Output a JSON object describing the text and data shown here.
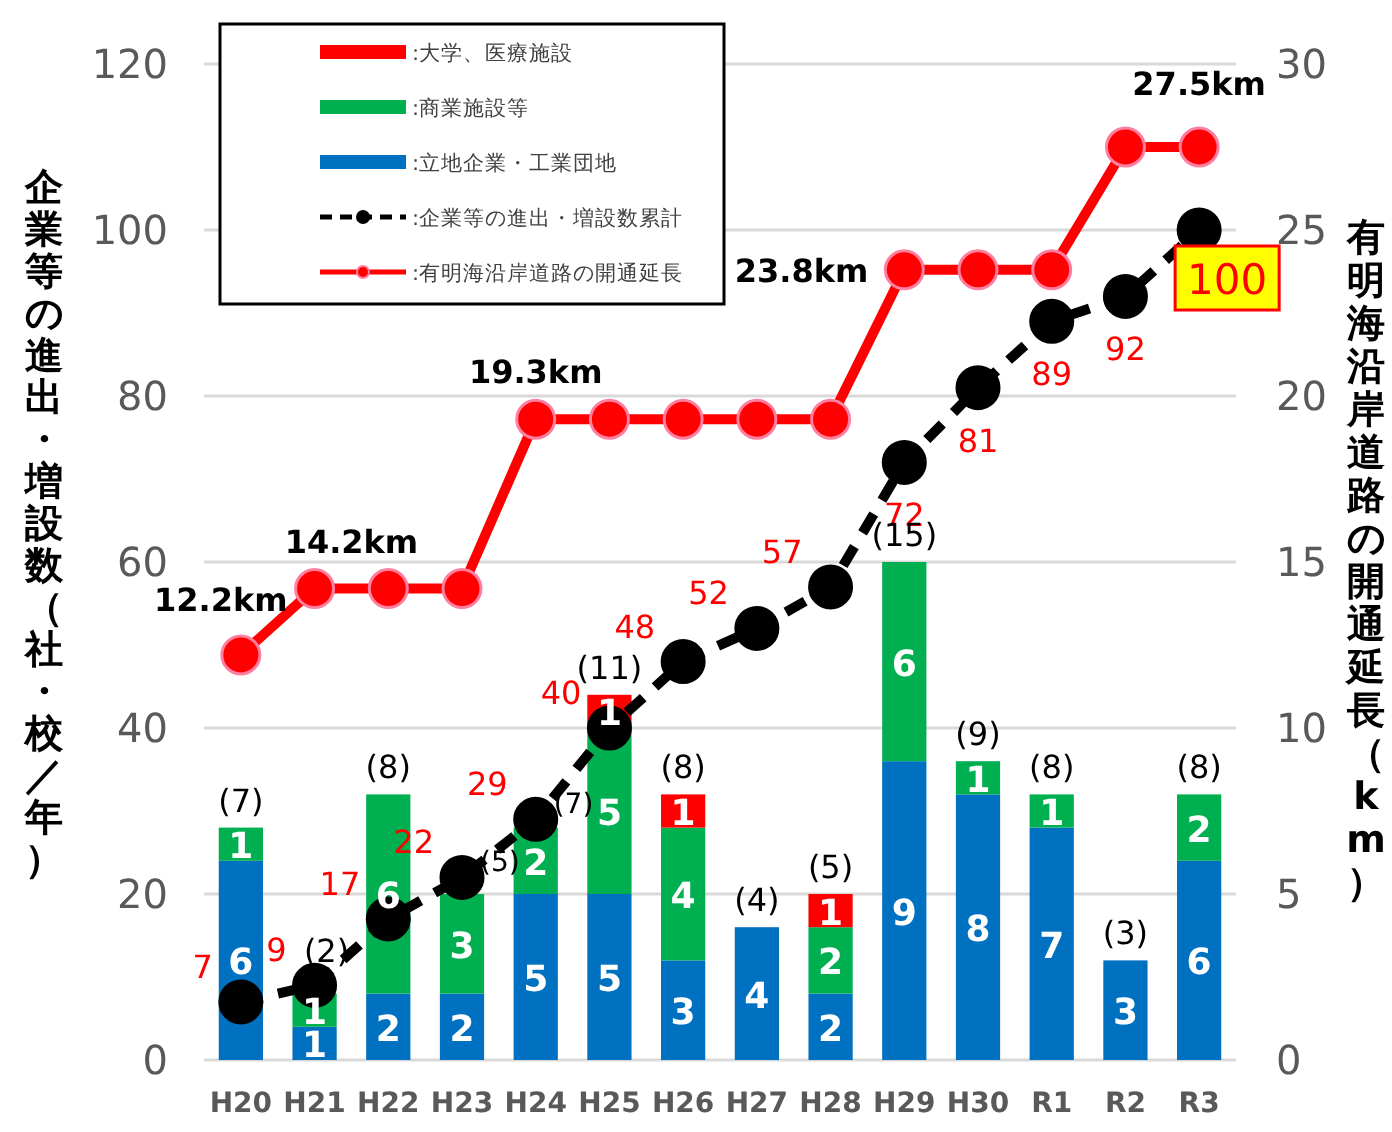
{
  "chart_data": {
    "type": "bar",
    "stacked": true,
    "ylabel": "企業等の進出・増設数（社・校／年）",
    "y2label": "有明海沿岸道路の開通延長（km）",
    "categories": [
      "H20",
      "H21",
      "H22",
      "H23",
      "H24",
      "H25",
      "H26",
      "H27",
      "H28",
      "H29",
      "H30",
      "R1",
      "R2",
      "R3"
    ],
    "ylim": [
      0,
      120
    ],
    "yticks": [
      0,
      20,
      40,
      60,
      80,
      100,
      120
    ],
    "y2lim": [
      0,
      30
    ],
    "y2ticks": [
      0,
      5,
      10,
      15,
      20,
      25,
      30
    ],
    "grid": "y",
    "legend": "top left",
    "totals": [
      "(7)",
      "(2)",
      "(8)",
      "(5)",
      "(7)",
      "(11)",
      "(8)",
      "(4)",
      "(5)",
      "(15)",
      "(9)",
      "(8)",
      "(3)",
      "(8)"
    ],
    "series": [
      {
        "name": ":立地企業・工業団地",
        "axis": "y2",
        "color": "#0070c0",
        "values": [
          6,
          1,
          2,
          2,
          5,
          5,
          3,
          4,
          2,
          9,
          8,
          7,
          3,
          6
        ],
        "value_labels": [
          "6",
          "1",
          "2",
          "2",
          "5",
          "5",
          "3",
          "4",
          "2",
          "9",
          "8",
          "7",
          "3",
          "6"
        ]
      },
      {
        "name": ":商業施設等",
        "axis": "y2",
        "color": "#00b050",
        "values": [
          1,
          1,
          6,
          3,
          2,
          5,
          4,
          null,
          2,
          6,
          1,
          1,
          null,
          2
        ],
        "value_labels": [
          "1",
          "1",
          "6",
          "3",
          "2",
          "5",
          "4",
          null,
          "2",
          "6",
          "1",
          "1",
          null,
          "2"
        ]
      },
      {
        "name": ":大学、医療施設",
        "axis": "y2",
        "color": "#ff0000",
        "values": [
          null,
          null,
          null,
          null,
          null,
          1,
          1,
          null,
          1,
          null,
          null,
          null,
          null,
          null
        ],
        "value_labels": [
          null,
          null,
          null,
          null,
          null,
          "1",
          "1",
          null,
          "1",
          null,
          null,
          null,
          null,
          null
        ]
      },
      {
        "name": ":企業等の進出・増設数累計",
        "type": "line",
        "axis": "y",
        "color": "#000000",
        "marker": "circle",
        "line_style": "dashed",
        "values": [
          7,
          9,
          17,
          22,
          29,
          40,
          48,
          52,
          57,
          72,
          81,
          89,
          92,
          100
        ],
        "value_labels": [
          "7",
          "9",
          "17",
          "22",
          "29",
          "40",
          "48",
          "52",
          "57",
          "72",
          "81",
          "89",
          "92",
          "100"
        ]
      },
      {
        "name": ":有明海沿岸道路の開通延長",
        "type": "line",
        "axis": "y2",
        "color": "#ff0000",
        "marker": "circle",
        "line_style": "solid",
        "values": [
          12.2,
          14.2,
          14.2,
          14.2,
          19.3,
          19.3,
          19.3,
          19.3,
          19.3,
          23.8,
          23.8,
          23.8,
          27.5,
          27.5
        ],
        "value_labels": [
          "12.2km",
          "14.2km",
          null,
          null,
          "19.3km",
          null,
          null,
          null,
          null,
          "23.8km",
          null,
          null,
          null,
          "27.5km"
        ]
      }
    ]
  }
}
